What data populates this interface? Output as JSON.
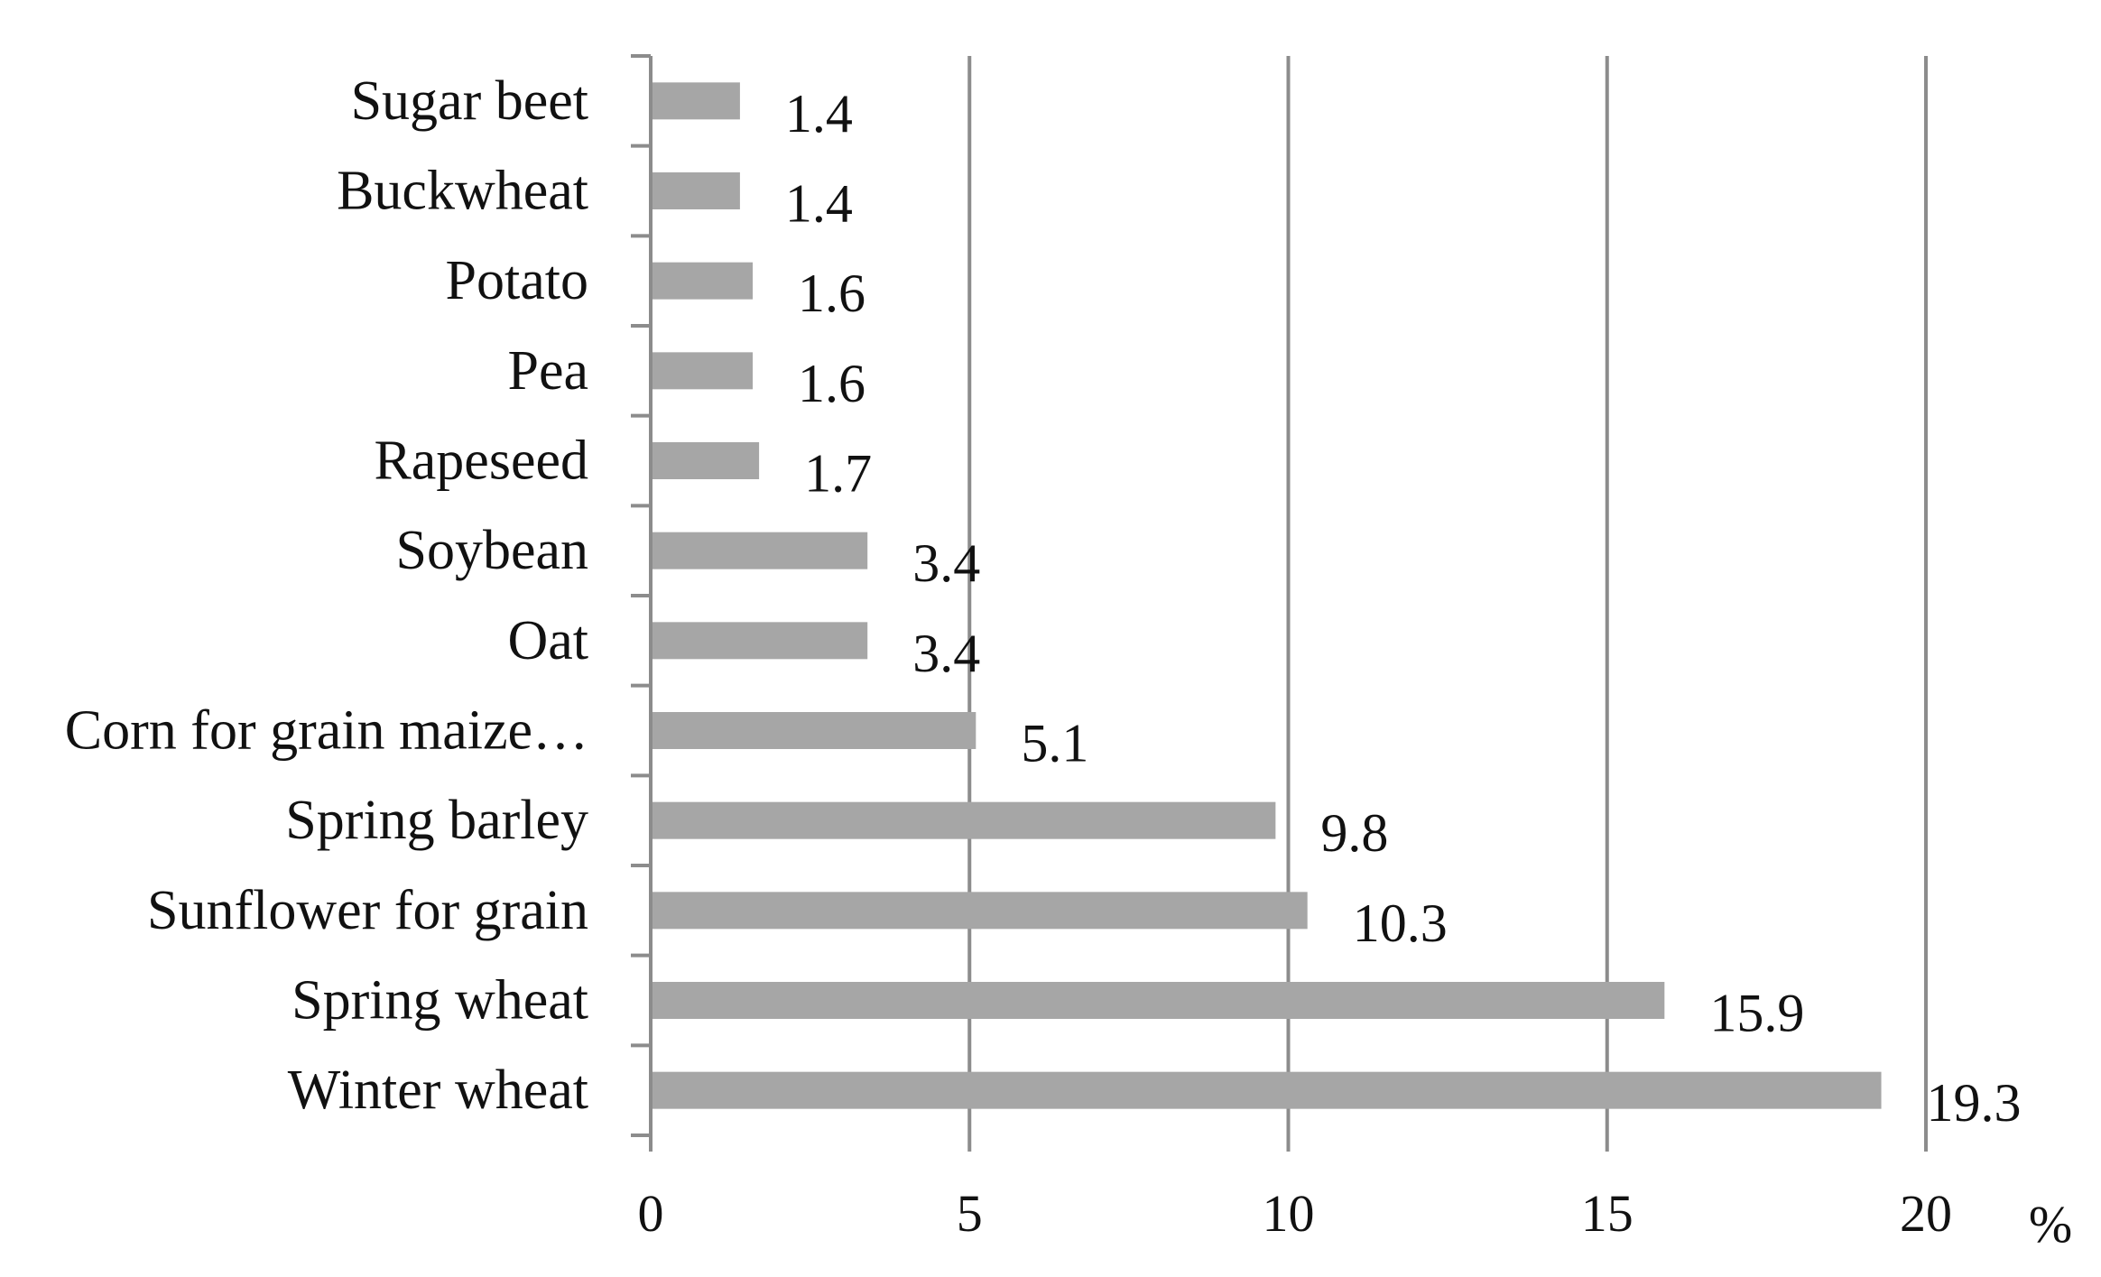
{
  "chart_data": {
    "type": "bar",
    "orientation": "horizontal",
    "title": "",
    "xlabel": "",
    "ylabel": "",
    "unit": "%",
    "categories": [
      "Winter wheat",
      "Spring wheat",
      "Sunflower for grain",
      "Spring barley",
      "Corn for grain maize…",
      "Oat",
      "Soybean",
      "Rapeseed",
      "Pea",
      "Potato",
      "Buckwheat",
      "Sugar beet"
    ],
    "values": [
      19.3,
      15.9,
      10.3,
      9.8,
      5.1,
      3.4,
      3.4,
      1.7,
      1.6,
      1.6,
      1.4,
      1.4
    ],
    "value_labels": [
      "19.3",
      "15.9",
      "10.3",
      "9.8",
      "5.1",
      "3.4",
      "3.4",
      "1.7",
      "1.6",
      "1.6",
      "1.4",
      "1.4"
    ],
    "xlim": [
      0,
      20
    ],
    "xticks": [
      0,
      5,
      10,
      15,
      20
    ],
    "xtick_labels": [
      "0",
      "5",
      "10",
      "15",
      "20"
    ],
    "grid": true,
    "legend": "none",
    "bar_color": "#a6a6a6",
    "axis_color": "#8c8c8c"
  }
}
